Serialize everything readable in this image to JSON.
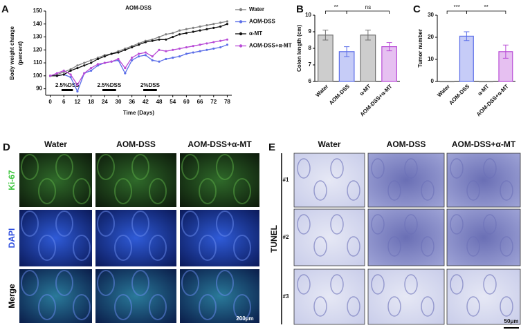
{
  "panel_labels": [
    "A",
    "B",
    "C",
    "D",
    "E"
  ],
  "chart_data": [
    {
      "type": "line",
      "title": "AOM-DSS",
      "xlabel": "Time (Days)",
      "ylabel": [
        "Body weight change",
        "(percent)"
      ],
      "x": [
        0,
        3,
        6,
        9,
        12,
        15,
        18,
        21,
        24,
        27,
        30,
        33,
        36,
        39,
        42,
        45,
        48,
        51,
        54,
        57,
        60,
        63,
        66,
        69,
        72,
        75,
        78
      ],
      "xlim": [
        -2,
        80
      ],
      "xticks": [
        0,
        6,
        12,
        18,
        24,
        30,
        36,
        42,
        48,
        54,
        60,
        66,
        72,
        78
      ],
      "ylim": [
        85,
        150
      ],
      "yticks": [
        90,
        100,
        110,
        120,
        130,
        140,
        150
      ],
      "annotations": [
        "2.5%DSS",
        "2.5%DSS",
        "2%DSS"
      ],
      "series": [
        {
          "name": "Water",
          "color": "#808080",
          "values": [
            100,
            101,
            103,
            105,
            108,
            110,
            112,
            114,
            116,
            117,
            119,
            121,
            123,
            125,
            127,
            128,
            130,
            132,
            133,
            135,
            136,
            137,
            138,
            139,
            140,
            141,
            142
          ]
        },
        {
          "name": "AOM-DSS",
          "color": "#5b6ee8",
          "values": [
            100,
            100,
            101,
            99,
            88,
            102,
            104,
            108,
            110,
            111,
            112,
            102,
            112,
            115,
            116,
            112,
            111,
            113,
            114,
            115,
            117,
            118,
            119,
            120,
            121,
            122,
            124
          ]
        },
        {
          "name": "α-MT",
          "color": "#111111",
          "values": [
            100,
            100,
            101,
            104,
            106,
            108,
            110,
            113,
            115,
            117,
            118,
            120,
            122,
            124,
            126,
            127,
            128,
            128,
            130,
            132,
            133,
            134,
            135,
            136,
            137,
            138,
            140
          ]
        },
        {
          "name": "AOM-DSS+α-MT",
          "color": "#b84ad6",
          "values": [
            100,
            102,
            104,
            101,
            93,
            102,
            106,
            109,
            110,
            111,
            113,
            106,
            114,
            117,
            118,
            115,
            120,
            119,
            120,
            121,
            122,
            123,
            124,
            125,
            126,
            127,
            128
          ]
        }
      ]
    },
    {
      "type": "bar",
      "ylabel": "Colon length (cm)",
      "categories": [
        "Water",
        "AOM-DSS",
        "α-MT",
        "AOM-DSS+α-MT"
      ],
      "values": [
        8.8,
        7.8,
        8.8,
        8.1
      ],
      "errors": [
        0.3,
        0.3,
        0.3,
        0.25
      ],
      "colors": [
        "#707070",
        "#5b6ee8",
        "#707070",
        "#b84ad6"
      ],
      "ylim": [
        6,
        10
      ],
      "yticks": [
        6,
        7,
        8,
        9,
        10
      ],
      "significance": [
        "**",
        "ns"
      ]
    },
    {
      "type": "bar",
      "ylabel": "Tumor number",
      "categories": [
        "Water",
        "AOM-DSS",
        "α-MT",
        "AOM-DSS+α-MT"
      ],
      "values": [
        0,
        20.5,
        0,
        13.5
      ],
      "errors": [
        0,
        2,
        0,
        3
      ],
      "colors": [
        "#707070",
        "#5b6ee8",
        "#707070",
        "#b84ad6"
      ],
      "ylim": [
        0,
        30
      ],
      "yticks": [
        0,
        10,
        20,
        30
      ],
      "significance": [
        "***",
        "**"
      ]
    }
  ],
  "panel_d": {
    "columns": [
      "Water",
      "AOM-DSS",
      "AOM-DSS+α-MT"
    ],
    "rows": [
      "Ki-67",
      "DAPI",
      "Merge"
    ],
    "scale_bar": "200μm"
  },
  "panel_e": {
    "columns": [
      "Water",
      "AOM-DSS",
      "AOM-DSS+α-MT"
    ],
    "rows": [
      "#1",
      "#2",
      "#3"
    ],
    "side_label": "TUNEL",
    "scale_bar": "50μm"
  }
}
